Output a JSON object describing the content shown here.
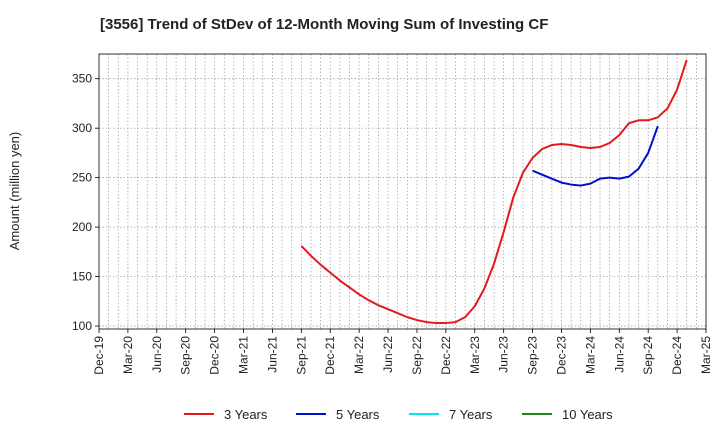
{
  "chart_data": {
    "type": "line",
    "title": "[3556]  Trend of StDev of 12-Month Moving Sum of Investing CF",
    "xlabel": "",
    "ylabel": "Amount (million yen)",
    "ylim": [
      97,
      375
    ],
    "yticks": [
      100,
      150,
      200,
      250,
      300,
      350
    ],
    "grid": true,
    "legend_position": "bottom",
    "x_tick_labels": [
      "Dec-19",
      "Mar-20",
      "Jun-20",
      "Sep-20",
      "Dec-20",
      "Mar-21",
      "Jun-21",
      "Sep-21",
      "Dec-21",
      "Mar-22",
      "Jun-22",
      "Sep-22",
      "Dec-22",
      "Mar-23",
      "Jun-23",
      "Sep-23",
      "Dec-23",
      "Mar-24",
      "Jun-24",
      "Sep-24",
      "Dec-24",
      "Mar-25"
    ],
    "x_start": "2019-12",
    "x_end": "2025-03",
    "series": [
      {
        "name": "3 Years",
        "color": "#e31a1c",
        "start": "2021-09",
        "values": [
          181,
          171,
          162,
          154,
          146,
          139,
          132,
          126,
          121,
          117,
          113,
          109,
          106,
          104,
          103,
          103,
          104,
          109,
          120,
          138,
          163,
          195,
          230,
          255,
          270,
          279,
          283,
          284,
          283,
          281,
          280,
          281,
          285,
          293,
          305,
          308,
          308,
          311,
          320,
          339,
          369
        ]
      },
      {
        "name": "5 Years",
        "color": "#0010cc",
        "start": "2023-09",
        "values": [
          257,
          253,
          249,
          245,
          243,
          242,
          244,
          249,
          250,
          249,
          251,
          259,
          275,
          302
        ]
      },
      {
        "name": "7 Years",
        "color": "#00e5ee",
        "start": null,
        "values": []
      },
      {
        "name": "10 Years",
        "color": "#1a8a1a",
        "start": null,
        "values": []
      }
    ]
  }
}
